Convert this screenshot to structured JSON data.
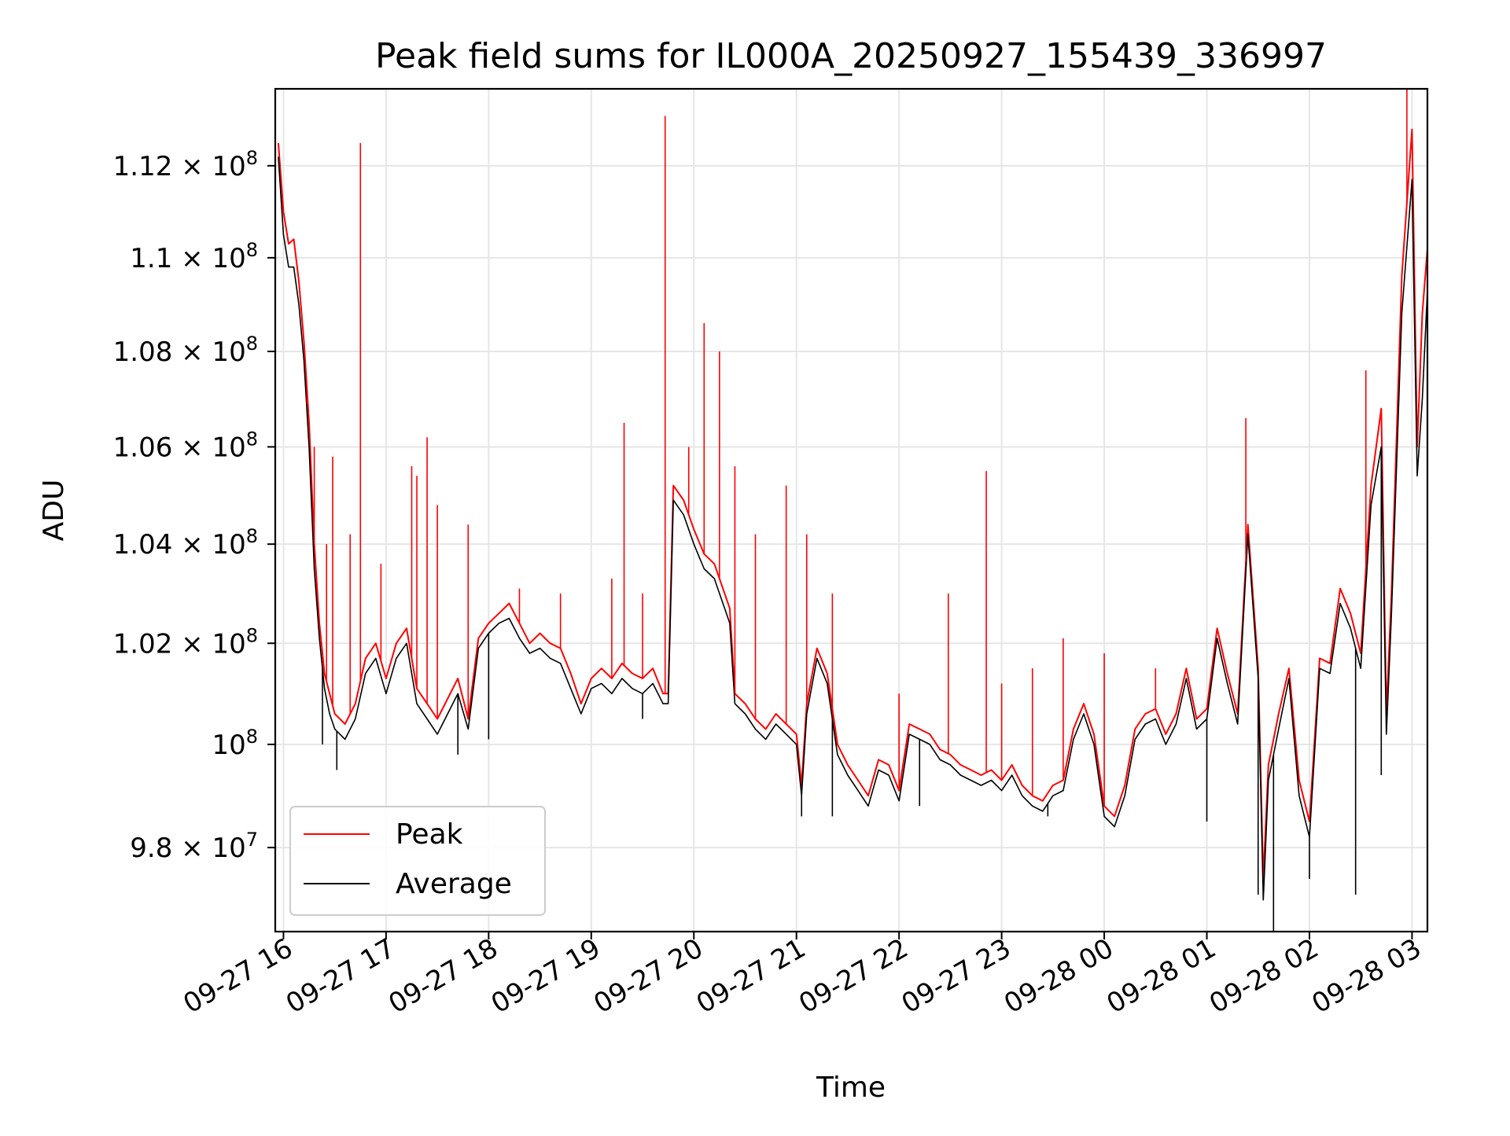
{
  "chart_data": {
    "type": "line",
    "title": "Peak field sums for IL000A_20250927_155439_336997",
    "xlabel": "Time",
    "ylabel": "ADU",
    "grid": true,
    "legend_position": "bottom-left",
    "x_unit": "hours since 09-27 00:00",
    "xlim": [
      15.92,
      27.15
    ],
    "ylim": [
      96.4,
      113.7
    ],
    "y_scale_note": "values in units of 1e6 ADU, log-scaled axis",
    "x_ticks": [
      {
        "value": 16,
        "label": "09-27 16"
      },
      {
        "value": 17,
        "label": "09-27 17"
      },
      {
        "value": 18,
        "label": "09-27 18"
      },
      {
        "value": 19,
        "label": "09-27 19"
      },
      {
        "value": 20,
        "label": "09-27 20"
      },
      {
        "value": 21,
        "label": "09-27 21"
      },
      {
        "value": 22,
        "label": "09-27 22"
      },
      {
        "value": 23,
        "label": "09-27 23"
      },
      {
        "value": 24,
        "label": "09-28 00"
      },
      {
        "value": 25,
        "label": "09-28 01"
      },
      {
        "value": 26,
        "label": "09-28 02"
      },
      {
        "value": 27,
        "label": "09-28 03"
      }
    ],
    "y_ticks": [
      {
        "value": 98,
        "mantissa": "9.8",
        "exponent": "7"
      },
      {
        "value": 100,
        "mantissa": "",
        "exponent": "8"
      },
      {
        "value": 102,
        "mantissa": "1.02",
        "exponent": "8"
      },
      {
        "value": 104,
        "mantissa": "1.04",
        "exponent": "8"
      },
      {
        "value": 106,
        "mantissa": "1.06",
        "exponent": "8"
      },
      {
        "value": 108,
        "mantissa": "1.08",
        "exponent": "8"
      },
      {
        "value": 110,
        "mantissa": "1.1",
        "exponent": "8"
      },
      {
        "value": 112,
        "mantissa": "1.12",
        "exponent": "8"
      }
    ],
    "tick_times_symbol": "×",
    "tick_base": "10",
    "series": [
      {
        "name": "Peak",
        "color": "#ff0000",
        "x": [
          15.95,
          16.0,
          16.05,
          16.1,
          16.15,
          16.2,
          16.25,
          16.3,
          16.35,
          16.4,
          16.45,
          16.5,
          16.6,
          16.7,
          16.8,
          16.9,
          17.0,
          17.1,
          17.2,
          17.3,
          17.4,
          17.5,
          17.6,
          17.7,
          17.8,
          17.9,
          18.0,
          18.1,
          18.2,
          18.3,
          18.4,
          18.5,
          18.6,
          18.7,
          18.8,
          18.9,
          19.0,
          19.1,
          19.2,
          19.3,
          19.4,
          19.5,
          19.6,
          19.7,
          19.75,
          19.8,
          19.9,
          20.0,
          20.1,
          20.2,
          20.3,
          20.35,
          20.4,
          20.5,
          20.6,
          20.7,
          20.8,
          20.9,
          21.0,
          21.05,
          21.1,
          21.2,
          21.3,
          21.4,
          21.5,
          21.6,
          21.7,
          21.8,
          21.9,
          22.0,
          22.1,
          22.2,
          22.3,
          22.4,
          22.5,
          22.6,
          22.7,
          22.8,
          22.9,
          23.0,
          23.1,
          23.2,
          23.3,
          23.4,
          23.5,
          23.6,
          23.7,
          23.8,
          23.9,
          24.0,
          24.1,
          24.2,
          24.3,
          24.4,
          24.5,
          24.6,
          24.7,
          24.8,
          24.9,
          25.0,
          25.1,
          25.2,
          25.3,
          25.4,
          25.5,
          25.55,
          25.6,
          25.7,
          25.8,
          25.9,
          26.0,
          26.1,
          26.2,
          26.3,
          26.4,
          26.5,
          26.6,
          26.7,
          26.75,
          26.8,
          26.9,
          27.0,
          27.05,
          27.1,
          27.15
        ],
        "y": [
          112.5,
          111.0,
          110.3,
          110.4,
          109.5,
          108.2,
          106.5,
          104.0,
          102.4,
          101.4,
          101.0,
          100.6,
          100.4,
          100.8,
          101.7,
          102.0,
          101.3,
          102.0,
          102.3,
          101.1,
          100.8,
          100.5,
          100.9,
          101.3,
          100.5,
          102.1,
          102.4,
          102.6,
          102.8,
          102.4,
          102.0,
          102.2,
          102.0,
          101.9,
          101.4,
          100.8,
          101.3,
          101.5,
          101.3,
          101.6,
          101.4,
          101.3,
          101.5,
          101.0,
          101.0,
          105.2,
          104.9,
          104.3,
          103.8,
          103.6,
          103.0,
          102.7,
          101.0,
          100.8,
          100.5,
          100.3,
          100.6,
          100.4,
          100.2,
          99.2,
          100.8,
          101.9,
          101.4,
          100.0,
          99.6,
          99.3,
          99.0,
          99.7,
          99.6,
          99.1,
          100.4,
          100.3,
          100.2,
          99.9,
          99.8,
          99.6,
          99.5,
          99.4,
          99.5,
          99.3,
          99.6,
          99.2,
          99.0,
          98.9,
          99.2,
          99.3,
          100.3,
          100.8,
          100.2,
          98.8,
          98.6,
          99.2,
          100.3,
          100.6,
          100.7,
          100.2,
          100.6,
          101.5,
          100.5,
          100.7,
          102.3,
          101.4,
          100.6,
          104.4,
          101.5,
          97.4,
          99.6,
          100.6,
          101.5,
          99.3,
          98.5,
          101.7,
          101.6,
          103.1,
          102.6,
          101.8,
          105.2,
          106.8,
          100.6,
          103.0,
          109.6,
          112.8,
          106.0,
          108.8,
          110.2
        ]
      },
      {
        "name": "Average",
        "color": "#000000",
        "x": [
          15.95,
          16.0,
          16.05,
          16.1,
          16.15,
          16.2,
          16.25,
          16.3,
          16.35,
          16.4,
          16.45,
          16.5,
          16.6,
          16.7,
          16.8,
          16.9,
          17.0,
          17.1,
          17.2,
          17.3,
          17.4,
          17.5,
          17.6,
          17.7,
          17.8,
          17.9,
          18.0,
          18.1,
          18.2,
          18.3,
          18.4,
          18.5,
          18.6,
          18.7,
          18.8,
          18.9,
          19.0,
          19.1,
          19.2,
          19.3,
          19.4,
          19.5,
          19.6,
          19.7,
          19.75,
          19.8,
          19.9,
          20.0,
          20.1,
          20.2,
          20.3,
          20.35,
          20.4,
          20.5,
          20.6,
          20.7,
          20.8,
          20.9,
          21.0,
          21.05,
          21.1,
          21.2,
          21.3,
          21.4,
          21.5,
          21.6,
          21.7,
          21.8,
          21.9,
          22.0,
          22.1,
          22.2,
          22.3,
          22.4,
          22.5,
          22.6,
          22.7,
          22.8,
          22.9,
          23.0,
          23.1,
          23.2,
          23.3,
          23.4,
          23.5,
          23.6,
          23.7,
          23.8,
          23.9,
          24.0,
          24.1,
          24.2,
          24.3,
          24.4,
          24.5,
          24.6,
          24.7,
          24.8,
          24.9,
          25.0,
          25.1,
          25.2,
          25.3,
          25.4,
          25.5,
          25.55,
          25.6,
          25.7,
          25.8,
          25.9,
          26.0,
          26.1,
          26.2,
          26.3,
          26.4,
          26.5,
          26.6,
          26.7,
          26.75,
          26.8,
          26.9,
          27.0,
          27.05,
          27.1,
          27.15
        ],
        "y": [
          112.2,
          110.5,
          109.8,
          109.8,
          109.0,
          107.8,
          106.0,
          103.5,
          102.1,
          101.1,
          100.6,
          100.3,
          100.1,
          100.5,
          101.4,
          101.7,
          101.0,
          101.7,
          102.0,
          100.8,
          100.5,
          100.2,
          100.6,
          101.0,
          100.3,
          101.9,
          102.2,
          102.4,
          102.5,
          102.1,
          101.8,
          101.9,
          101.7,
          101.6,
          101.1,
          100.6,
          101.1,
          101.2,
          101.0,
          101.3,
          101.1,
          101.0,
          101.2,
          100.8,
          100.8,
          104.9,
          104.6,
          104.0,
          103.5,
          103.3,
          102.7,
          102.4,
          100.8,
          100.6,
          100.3,
          100.1,
          100.4,
          100.2,
          100.0,
          99.0,
          100.6,
          101.7,
          101.2,
          99.8,
          99.4,
          99.1,
          98.8,
          99.5,
          99.4,
          98.9,
          100.2,
          100.1,
          100.0,
          99.7,
          99.6,
          99.4,
          99.3,
          99.2,
          99.3,
          99.1,
          99.4,
          99.0,
          98.8,
          98.7,
          99.0,
          99.1,
          100.1,
          100.6,
          100.0,
          98.6,
          98.4,
          99.0,
          100.1,
          100.4,
          100.5,
          100.0,
          100.4,
          101.3,
          100.3,
          100.5,
          102.1,
          101.2,
          100.4,
          104.2,
          101.3,
          97.0,
          99.3,
          100.3,
          101.3,
          99.0,
          98.2,
          101.5,
          101.4,
          102.8,
          102.3,
          101.5,
          104.8,
          106.0,
          100.2,
          102.6,
          108.8,
          111.7,
          105.4,
          107.0,
          109.3
        ]
      }
    ],
    "spikes": {
      "color": "#ff0000",
      "points": [
        {
          "x": 16.23,
          "y": 106.9
        },
        {
          "x": 16.3,
          "y": 106.0
        },
        {
          "x": 16.42,
          "y": 104.0
        },
        {
          "x": 16.48,
          "y": 105.8
        },
        {
          "x": 16.65,
          "y": 104.2
        },
        {
          "x": 16.75,
          "y": 112.5
        },
        {
          "x": 16.95,
          "y": 103.6
        },
        {
          "x": 17.25,
          "y": 105.6
        },
        {
          "x": 17.3,
          "y": 105.4
        },
        {
          "x": 17.4,
          "y": 106.2
        },
        {
          "x": 17.5,
          "y": 104.8
        },
        {
          "x": 17.8,
          "y": 104.4
        },
        {
          "x": 18.3,
          "y": 103.1
        },
        {
          "x": 18.7,
          "y": 103.0
        },
        {
          "x": 19.2,
          "y": 103.3
        },
        {
          "x": 19.32,
          "y": 106.5
        },
        {
          "x": 19.5,
          "y": 103.0
        },
        {
          "x": 19.72,
          "y": 113.1
        },
        {
          "x": 19.95,
          "y": 106.0
        },
        {
          "x": 20.1,
          "y": 108.6
        },
        {
          "x": 20.25,
          "y": 108.0
        },
        {
          "x": 20.4,
          "y": 105.6
        },
        {
          "x": 20.6,
          "y": 104.2
        },
        {
          "x": 20.9,
          "y": 105.2
        },
        {
          "x": 21.1,
          "y": 104.2
        },
        {
          "x": 21.35,
          "y": 103.0
        },
        {
          "x": 22.0,
          "y": 101.0
        },
        {
          "x": 22.48,
          "y": 103.0
        },
        {
          "x": 22.85,
          "y": 105.5
        },
        {
          "x": 23.0,
          "y": 101.2
        },
        {
          "x": 23.3,
          "y": 101.5
        },
        {
          "x": 23.6,
          "y": 102.1
        },
        {
          "x": 24.0,
          "y": 101.8
        },
        {
          "x": 24.5,
          "y": 101.5
        },
        {
          "x": 25.38,
          "y": 106.6
        },
        {
          "x": 26.55,
          "y": 107.6
        },
        {
          "x": 26.85,
          "y": 106.4
        },
        {
          "x": 26.95,
          "y": 113.7
        }
      ]
    },
    "dips": {
      "color": "#000000",
      "points": [
        {
          "x": 16.38,
          "y": 100.0
        },
        {
          "x": 16.52,
          "y": 99.5
        },
        {
          "x": 17.7,
          "y": 99.8
        },
        {
          "x": 18.0,
          "y": 100.1
        },
        {
          "x": 19.5,
          "y": 100.5
        },
        {
          "x": 21.05,
          "y": 98.6
        },
        {
          "x": 21.35,
          "y": 98.6
        },
        {
          "x": 22.2,
          "y": 98.8
        },
        {
          "x": 23.45,
          "y": 98.6
        },
        {
          "x": 25.0,
          "y": 98.5
        },
        {
          "x": 25.5,
          "y": 97.1
        },
        {
          "x": 25.65,
          "y": 96.4
        },
        {
          "x": 26.0,
          "y": 97.4
        },
        {
          "x": 26.45,
          "y": 97.1
        },
        {
          "x": 26.7,
          "y": 99.4
        }
      ]
    },
    "legend": [
      {
        "label": "Peak",
        "color": "#ff0000"
      },
      {
        "label": "Average",
        "color": "#000000"
      }
    ]
  }
}
